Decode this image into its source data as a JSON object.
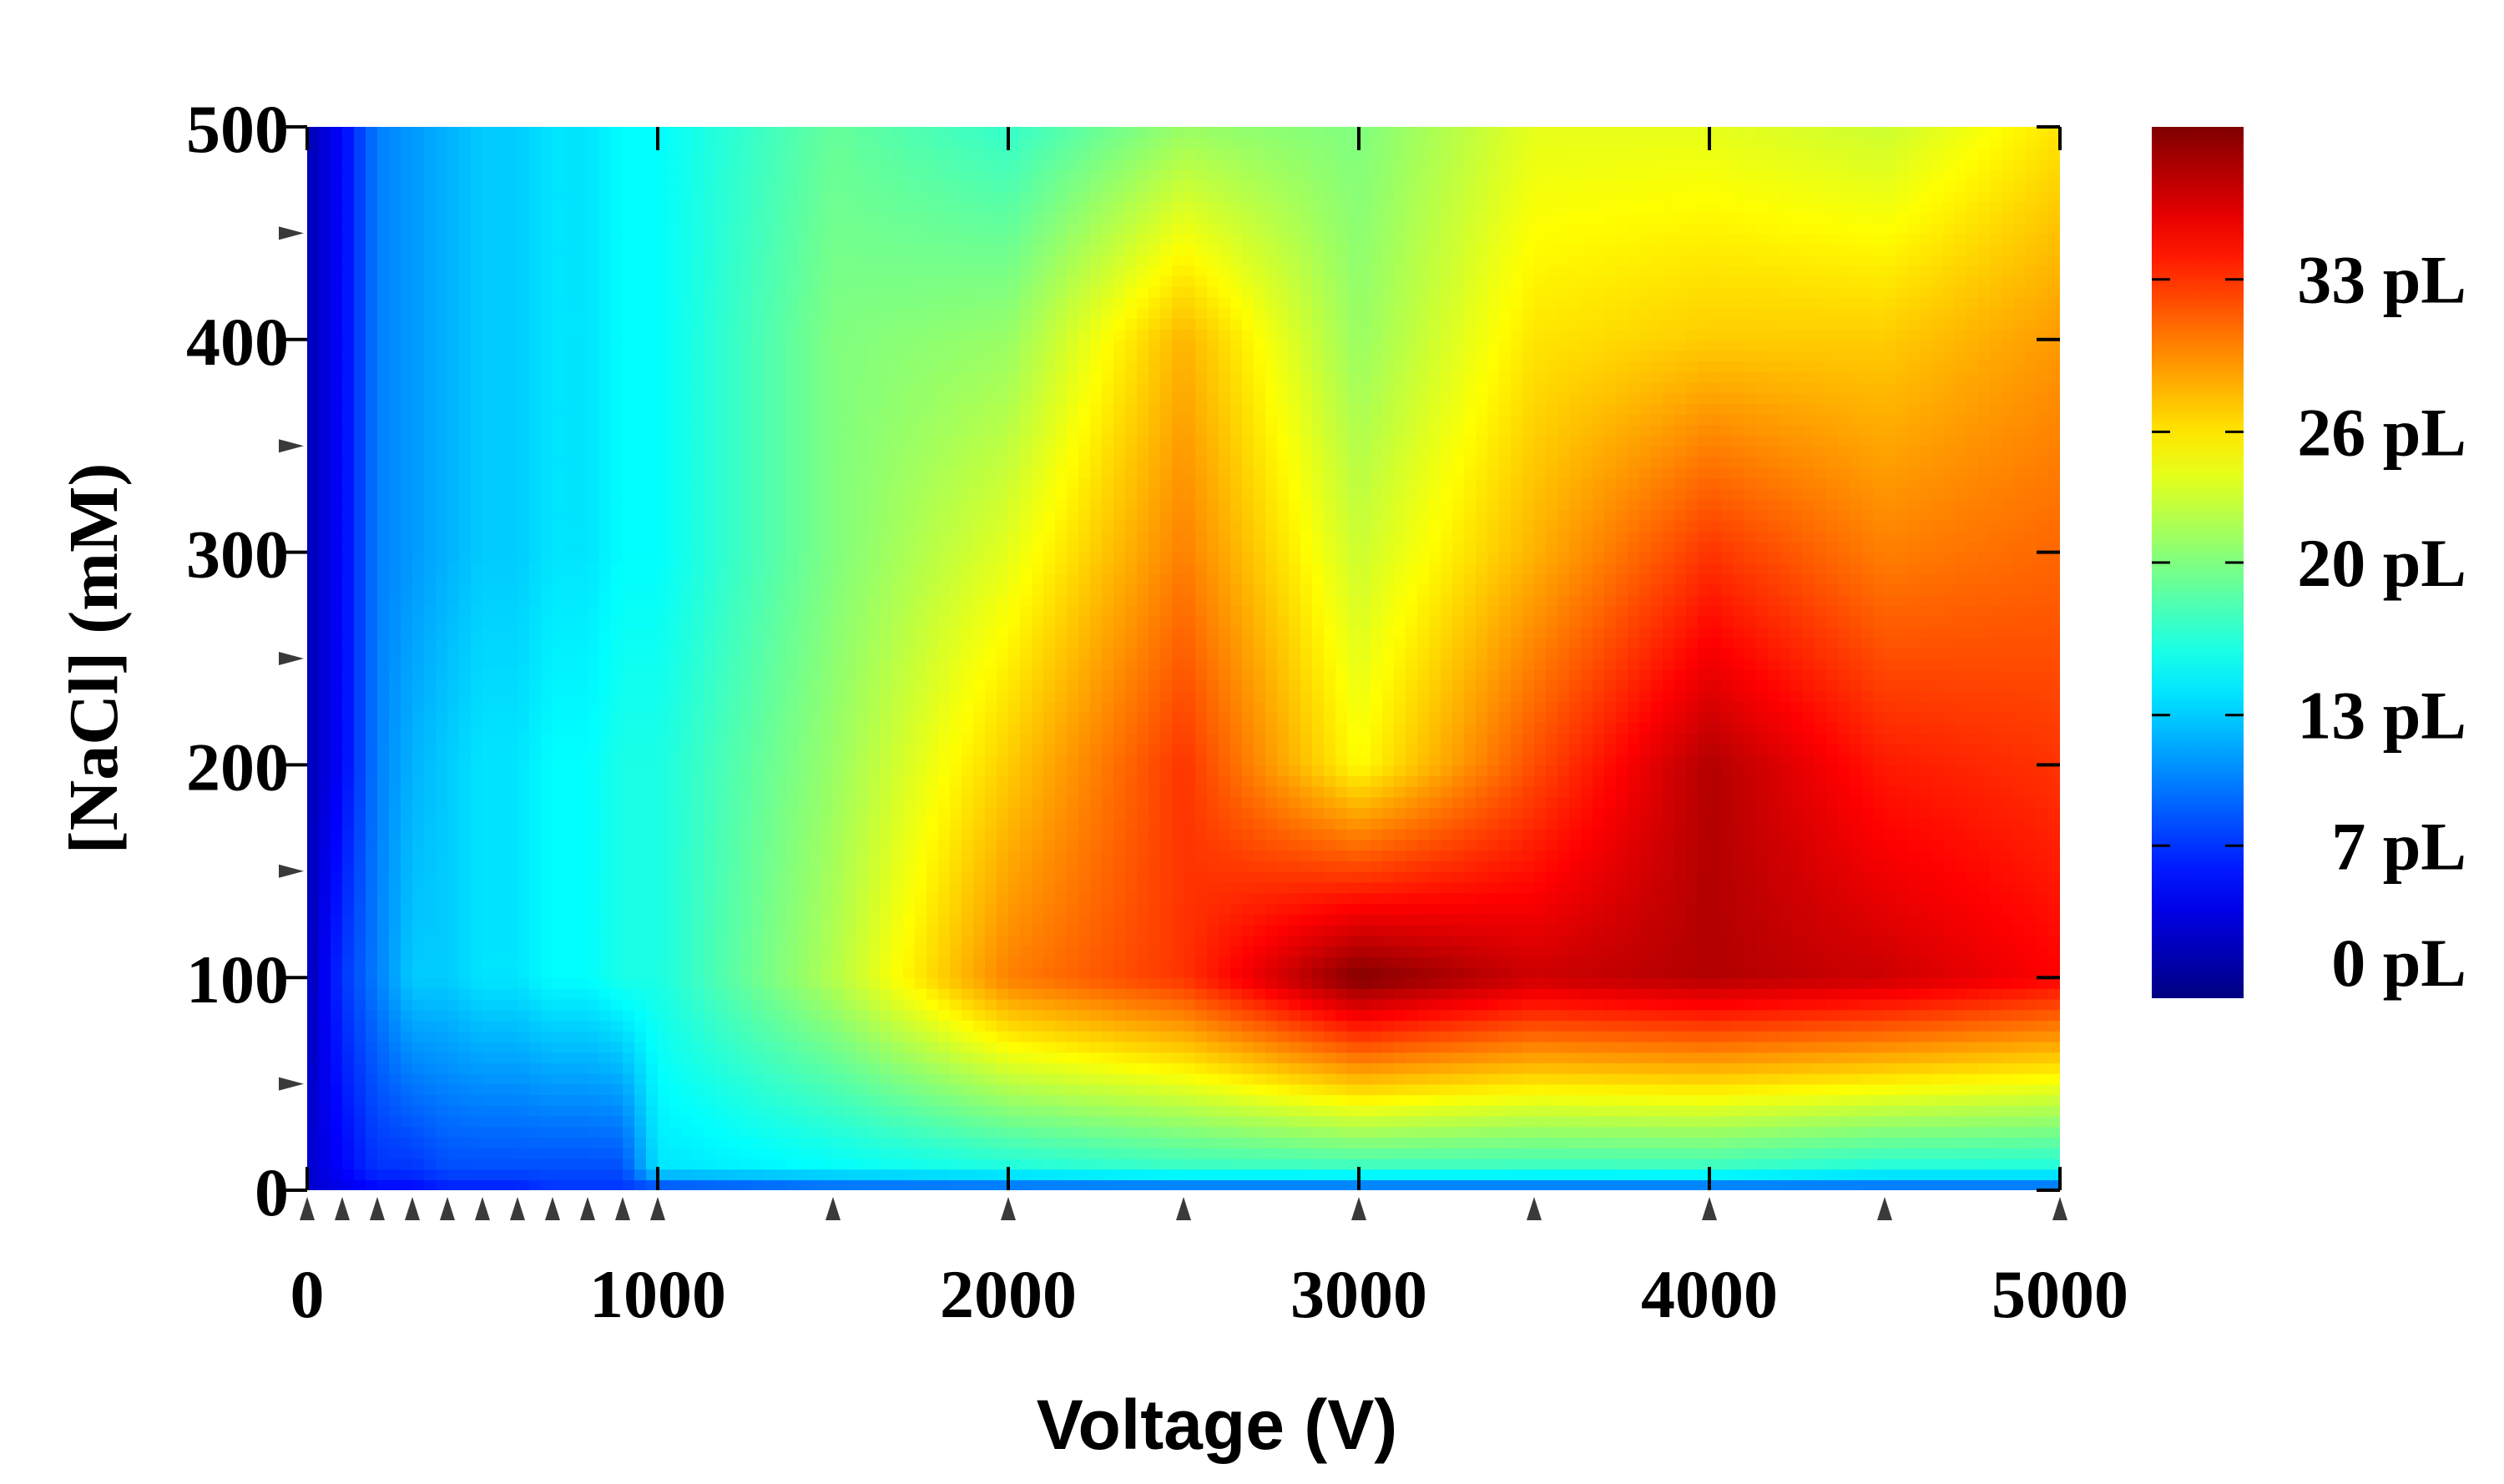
{
  "chart_data": {
    "type": "heatmap",
    "title": "",
    "xlabel": "Voltage (V)",
    "ylabel": "[NaCl] (mM)",
    "xlim": [
      0,
      5000
    ],
    "ylim": [
      0,
      500
    ],
    "x_ticks": [
      0,
      1000,
      2000,
      3000,
      4000,
      5000
    ],
    "x_tick_labels": [
      "0",
      "1000",
      "2000",
      "3000",
      "4000",
      "5000"
    ],
    "y_ticks": [
      0,
      100,
      200,
      300,
      400,
      500
    ],
    "y_tick_labels": [
      "0",
      "100",
      "200",
      "300",
      "400",
      "500"
    ],
    "x_sample_points": [
      0,
      100,
      200,
      300,
      400,
      500,
      600,
      700,
      800,
      900,
      1000,
      1500,
      2000,
      2500,
      3000,
      3500,
      4000,
      4500,
      5000
    ],
    "y_minor_ticks": [
      50,
      150,
      250,
      350,
      450
    ],
    "colorbar": {
      "units": "pL",
      "range": [
        0,
        40
      ],
      "ticks": [
        0,
        7,
        13,
        20,
        26,
        33
      ],
      "labels": [
        "0 pL",
        "7 pL",
        "13 pL",
        "20 pL",
        "26 pL",
        "33 pL"
      ],
      "colormap": "jet"
    },
    "grid_x": [
      0,
      100,
      200,
      300,
      400,
      500,
      600,
      700,
      800,
      900,
      1000,
      1500,
      2000,
      2500,
      3000,
      3500,
      4000,
      4500,
      5000
    ],
    "grid_y": [
      0,
      10,
      100,
      200,
      300,
      400,
      500
    ],
    "z": [
      [
        3,
        4,
        5,
        5,
        6,
        6,
        6,
        7,
        7,
        7,
        7,
        8,
        8,
        8,
        8,
        8,
        8,
        8,
        8
      ],
      [
        3,
        5,
        7,
        7,
        8,
        8,
        8,
        8,
        8,
        8,
        14,
        15,
        16,
        17,
        17,
        17,
        17,
        16,
        16
      ],
      [
        2,
        7,
        10,
        13,
        13,
        14,
        14,
        15,
        15,
        16,
        16,
        22,
        30,
        33,
        40,
        37,
        38,
        37,
        35
      ],
      [
        2,
        5,
        10,
        12,
        13,
        14,
        14,
        15,
        15,
        16,
        16,
        21,
        27,
        33,
        25,
        32,
        38,
        34,
        33
      ],
      [
        2,
        5,
        10,
        11,
        12,
        13,
        13,
        14,
        14,
        15,
        15,
        20,
        24,
        30,
        23,
        28,
        33,
        30,
        31
      ],
      [
        2,
        5,
        10,
        11,
        12,
        13,
        13,
        14,
        14,
        15,
        15,
        20,
        21,
        28,
        21,
        26,
        27,
        27,
        29
      ],
      [
        2,
        5,
        10,
        11,
        12,
        13,
        13,
        14,
        14,
        15,
        15,
        19,
        17,
        21,
        20,
        24,
        24,
        23,
        26
      ]
    ]
  }
}
